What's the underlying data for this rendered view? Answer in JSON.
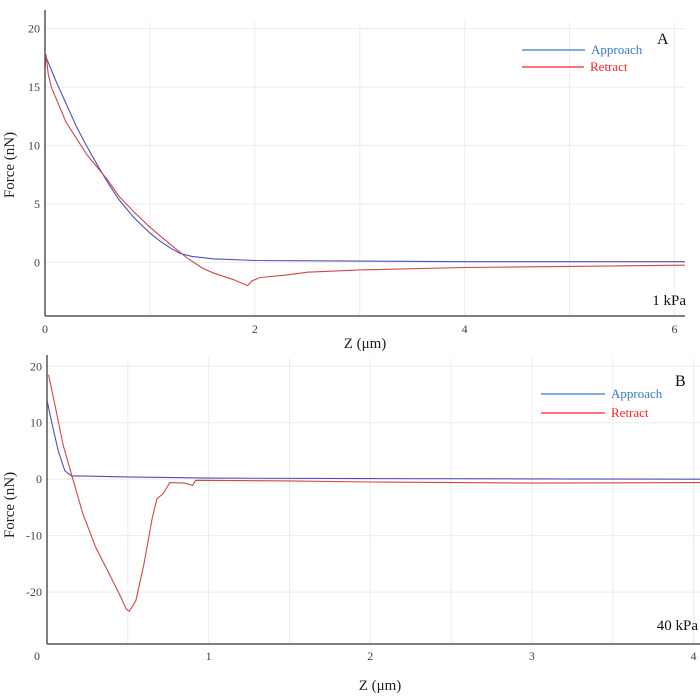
{
  "chart_data": [
    {
      "type": "line",
      "panel_label": "A",
      "annotation": "1 kPa",
      "xlabel": "Z (μm)",
      "ylabel": "Force (nN)",
      "xlim": [
        0,
        6.1
      ],
      "ylim": [
        -4.6,
        21.6
      ],
      "xticks": [
        0,
        2,
        4,
        6
      ],
      "yticks": [
        0,
        5,
        10,
        15,
        20
      ],
      "xgrid": [
        1,
        2,
        3,
        4,
        5,
        6
      ],
      "grid": true,
      "legend": "top-right",
      "series": [
        {
          "name": "Approach",
          "color": "#4a4fc4",
          "legend_color": "#3a78c9",
          "x": [
            0,
            0.1,
            0.2,
            0.3,
            0.4,
            0.5,
            0.6,
            0.71,
            0.85,
            1.0,
            1.1,
            1.2,
            1.29,
            1.4,
            1.6,
            2.0,
            3.0,
            4.0,
            5.0,
            6.1
          ],
          "y": [
            17.8,
            15.6,
            13.6,
            11.6,
            9.9,
            8.3,
            6.8,
            5.3,
            3.8,
            2.5,
            1.8,
            1.2,
            0.75,
            0.5,
            0.3,
            0.15,
            0.1,
            0.05,
            0.05,
            0.05
          ]
        },
        {
          "name": "Retract",
          "color": "#d64545",
          "legend_color": "#ff2020",
          "x": [
            0,
            0.01,
            0.03,
            0.06,
            0.2,
            0.4,
            0.6,
            0.71,
            0.85,
            1.0,
            1.2,
            1.35,
            1.5,
            1.6,
            1.8,
            1.93,
            1.97,
            2.05,
            2.3,
            2.5,
            3.0,
            4.0,
            5.0,
            6.1
          ],
          "y": [
            16.5,
            17.8,
            16.2,
            15.0,
            12.0,
            9.2,
            7.0,
            5.6,
            4.3,
            3.0,
            1.5,
            0.4,
            -0.5,
            -0.9,
            -1.5,
            -2.0,
            -1.6,
            -1.3,
            -1.1,
            -0.85,
            -0.65,
            -0.45,
            -0.35,
            -0.25
          ]
        }
      ]
    },
    {
      "type": "line",
      "panel_label": "B",
      "annotation": "40 kPa",
      "xlabel": "Z (μm)",
      "ylabel": "Force (nN)",
      "xlim": [
        0,
        4.04
      ],
      "ylim": [
        -29.2,
        22
      ],
      "xticks": [
        0,
        1,
        2,
        3,
        4
      ],
      "yticks": [
        20,
        10,
        0,
        -10,
        -20
      ],
      "xgrid": [
        0.5,
        1,
        1.5,
        2,
        2.5,
        3,
        3.5,
        4
      ],
      "grid": true,
      "legend": "top-right",
      "series": [
        {
          "name": "Approach",
          "color": "#4a4fc4",
          "legend_color": "#3a78c9",
          "x": [
            0,
            0.03,
            0.07,
            0.11,
            0.15,
            0.5,
            1.0,
            2.0,
            3.0,
            4.04
          ],
          "y": [
            14,
            10,
            5,
            1.5,
            0.6,
            0.4,
            0.2,
            0.1,
            0.05,
            0
          ],
          "note": ""
        },
        {
          "name": "Retract",
          "color": "#d64545",
          "legend_color": "#ff2020",
          "x": [
            0.01,
            0.05,
            0.1,
            0.16,
            0.22,
            0.3,
            0.38,
            0.45,
            0.49,
            0.51,
            0.55,
            0.6,
            0.65,
            0.68,
            0.72,
            0.76,
            0.85,
            0.9,
            0.92,
            1.5,
            2.0,
            3.0,
            4.04
          ],
          "y": [
            18.5,
            13,
            6,
            0,
            -6,
            -12,
            -16.5,
            -20.5,
            -23,
            -23.4,
            -21.5,
            -15,
            -7,
            -3.5,
            -2.5,
            -0.6,
            -0.7,
            -1.1,
            -0.2,
            -0.3,
            -0.5,
            -0.7,
            -0.6
          ]
        }
      ]
    }
  ]
}
